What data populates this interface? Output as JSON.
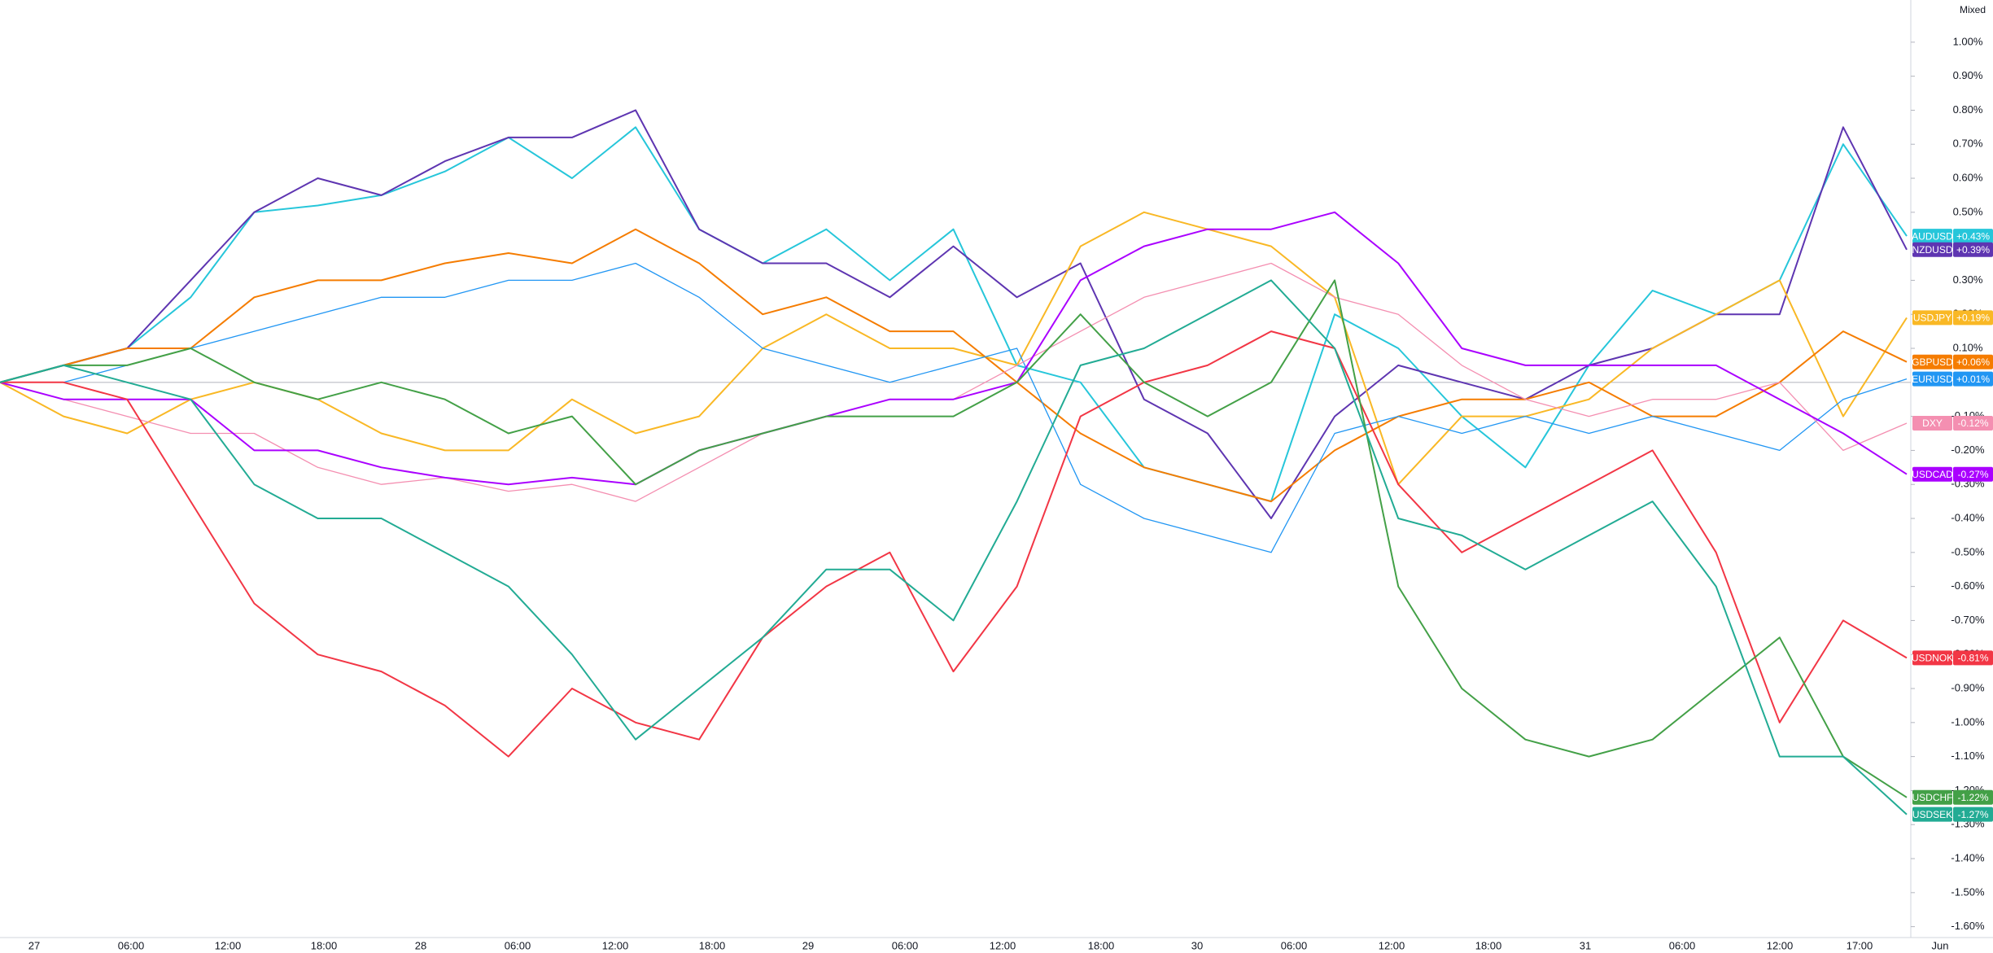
{
  "chart_data": {
    "type": "line",
    "scale_mode": "Mixed",
    "ylim": [
      -1.632,
      1.124
    ],
    "yticks": [
      {
        "value": 1.0,
        "label": "1.00%"
      },
      {
        "value": 0.9,
        "label": "0.90%"
      },
      {
        "value": 0.8,
        "label": "0.80%"
      },
      {
        "value": 0.7,
        "label": "0.70%"
      },
      {
        "value": 0.6,
        "label": "0.60%"
      },
      {
        "value": 0.5,
        "label": "0.50%"
      },
      {
        "value": 0.3,
        "label": "0.30%"
      },
      {
        "value": 0.2,
        "label": "0.20%"
      },
      {
        "value": 0.1,
        "label": "0.10%"
      },
      {
        "value": -0.1,
        "label": "-0.10%"
      },
      {
        "value": -0.2,
        "label": "-0.20%"
      },
      {
        "value": -0.3,
        "label": "-0.30%"
      },
      {
        "value": -0.4,
        "label": "-0.40%"
      },
      {
        "value": -0.5,
        "label": "-0.50%"
      },
      {
        "value": -0.6,
        "label": "-0.60%"
      },
      {
        "value": -0.7,
        "label": "-0.70%"
      },
      {
        "value": -0.8,
        "label": "-0.80%"
      },
      {
        "value": -0.9,
        "label": "-0.90%"
      },
      {
        "value": -1.0,
        "label": "-1.00%"
      },
      {
        "value": -1.1,
        "label": "-1.10%"
      },
      {
        "value": -1.2,
        "label": "-1.20%"
      },
      {
        "value": -1.3,
        "label": "-1.30%"
      },
      {
        "value": -1.4,
        "label": "-1.40%"
      },
      {
        "value": -1.5,
        "label": "-1.50%"
      },
      {
        "value": -1.6,
        "label": "-1.60%"
      }
    ],
    "x_labels": [
      "27",
      "06:00",
      "12:00",
      "18:00",
      "28",
      "06:00",
      "12:00",
      "18:00",
      "29",
      "06:00",
      "12:00",
      "18:00",
      "30",
      "06:00",
      "12:00",
      "18:00",
      "31",
      "06:00",
      "12:00",
      "17:00",
      "Jun"
    ],
    "series": [
      {
        "name": "AUDUSD",
        "color": "#26c6da",
        "value_labels": "+0.43%",
        "values": [
          0,
          0.05,
          0.1,
          0.25,
          0.5,
          0.52,
          0.55,
          0.62,
          0.72,
          0.6,
          0.75,
          0.45,
          0.35,
          0.45,
          0.3,
          0.45,
          0.05,
          0.0,
          -0.25,
          -0.3,
          -0.35,
          0.2,
          0.1,
          -0.1,
          -0.25,
          0.05,
          0.27,
          0.2,
          0.3,
          0.7,
          0.43
        ]
      },
      {
        "name": "NZDUSD",
        "color": "#5e35b1",
        "value_labels": "+0.39%",
        "values": [
          0,
          0.05,
          0.1,
          0.3,
          0.5,
          0.6,
          0.55,
          0.65,
          0.72,
          0.72,
          0.8,
          0.45,
          0.35,
          0.35,
          0.25,
          0.4,
          0.25,
          0.35,
          -0.05,
          -0.15,
          -0.4,
          -0.1,
          0.05,
          0.0,
          -0.05,
          0.05,
          0.1,
          0.2,
          0.2,
          0.75,
          0.39
        ]
      },
      {
        "name": "USDJPY",
        "color": "#f9b825",
        "value_labels": "+0.19%",
        "values": [
          0,
          -0.1,
          -0.15,
          -0.05,
          0.0,
          -0.05,
          -0.15,
          -0.2,
          -0.2,
          -0.05,
          -0.15,
          -0.1,
          0.1,
          0.2,
          0.1,
          0.1,
          0.05,
          0.4,
          0.5,
          0.45,
          0.4,
          0.25,
          -0.3,
          -0.1,
          -0.1,
          -0.05,
          0.1,
          0.2,
          0.3,
          -0.1,
          0.19
        ]
      },
      {
        "name": "GBPUSD",
        "color": "#f57c00",
        "value_labels": "+0.06%",
        "values": [
          0,
          0.05,
          0.1,
          0.1,
          0.25,
          0.3,
          0.3,
          0.35,
          0.38,
          0.35,
          0.45,
          0.35,
          0.2,
          0.25,
          0.15,
          0.15,
          0.0,
          -0.15,
          -0.25,
          -0.3,
          -0.35,
          -0.2,
          -0.1,
          -0.05,
          -0.05,
          0.0,
          -0.1,
          -0.1,
          0.0,
          0.15,
          0.06
        ]
      },
      {
        "name": "EURUSD",
        "color": "#2196f3",
        "value_labels": "+0.01%",
        "values": [
          0,
          0.0,
          0.05,
          0.1,
          0.15,
          0.2,
          0.25,
          0.25,
          0.3,
          0.3,
          0.35,
          0.25,
          0.1,
          0.05,
          0.0,
          0.05,
          0.1,
          -0.3,
          -0.4,
          -0.45,
          -0.5,
          -0.15,
          -0.1,
          -0.15,
          -0.1,
          -0.15,
          -0.1,
          -0.15,
          -0.2,
          -0.05,
          0.01
        ]
      },
      {
        "name": "DXY",
        "color": "#f48fb1",
        "value_labels": "-0.12%",
        "values": [
          0,
          -0.05,
          -0.1,
          -0.15,
          -0.15,
          -0.25,
          -0.3,
          -0.28,
          -0.32,
          -0.3,
          -0.35,
          -0.25,
          -0.15,
          -0.1,
          -0.05,
          -0.05,
          0.05,
          0.15,
          0.25,
          0.3,
          0.35,
          0.25,
          0.2,
          0.05,
          -0.05,
          -0.1,
          -0.05,
          -0.05,
          0.0,
          -0.2,
          -0.12
        ]
      },
      {
        "name": "USDCAD",
        "color": "#aa00ff",
        "value_labels": "-0.27%",
        "values": [
          0,
          -0.05,
          -0.05,
          -0.05,
          -0.2,
          -0.2,
          -0.25,
          -0.28,
          -0.3,
          -0.28,
          -0.3,
          -0.2,
          -0.15,
          -0.1,
          -0.05,
          -0.05,
          0.0,
          0.3,
          0.4,
          0.45,
          0.45,
          0.5,
          0.35,
          0.1,
          0.05,
          0.05,
          0.05,
          0.05,
          -0.05,
          -0.15,
          -0.27
        ]
      },
      {
        "name": "USDNOK",
        "color": "#f23645",
        "value_labels": "-0.81%",
        "values": [
          0,
          0.0,
          -0.05,
          -0.35,
          -0.65,
          -0.8,
          -0.85,
          -0.95,
          -1.1,
          -0.9,
          -1.0,
          -1.05,
          -0.75,
          -0.6,
          -0.5,
          -0.85,
          -0.6,
          -0.1,
          0.0,
          0.05,
          0.15,
          0.1,
          -0.3,
          -0.5,
          -0.4,
          -0.3,
          -0.2,
          -0.5,
          -1.0,
          -0.7,
          -0.81
        ]
      },
      {
        "name": "USDCHF",
        "color": "#43a047",
        "value_labels": "-1.22%",
        "values": [
          0,
          0.05,
          0.05,
          0.1,
          0.0,
          -0.05,
          0.0,
          -0.05,
          -0.15,
          -0.1,
          -0.3,
          -0.2,
          -0.15,
          -0.1,
          -0.1,
          -0.1,
          0.0,
          0.2,
          0.0,
          -0.1,
          0.0,
          0.3,
          -0.6,
          -0.9,
          -1.05,
          -1.1,
          -1.05,
          -0.9,
          -0.75,
          -1.1,
          -1.22
        ]
      },
      {
        "name": "USDSEK",
        "color": "#22ab94",
        "value_labels": "-1.27%",
        "values": [
          0,
          0.05,
          0.0,
          -0.05,
          -0.3,
          -0.4,
          -0.4,
          -0.5,
          -0.6,
          -0.8,
          -1.05,
          -0.9,
          -0.75,
          -0.55,
          -0.55,
          -0.7,
          -0.35,
          0.05,
          0.1,
          0.2,
          0.3,
          0.1,
          -0.4,
          -0.45,
          -0.55,
          -0.45,
          -0.35,
          -0.6,
          -1.1,
          -1.1,
          -1.27
        ]
      }
    ]
  }
}
